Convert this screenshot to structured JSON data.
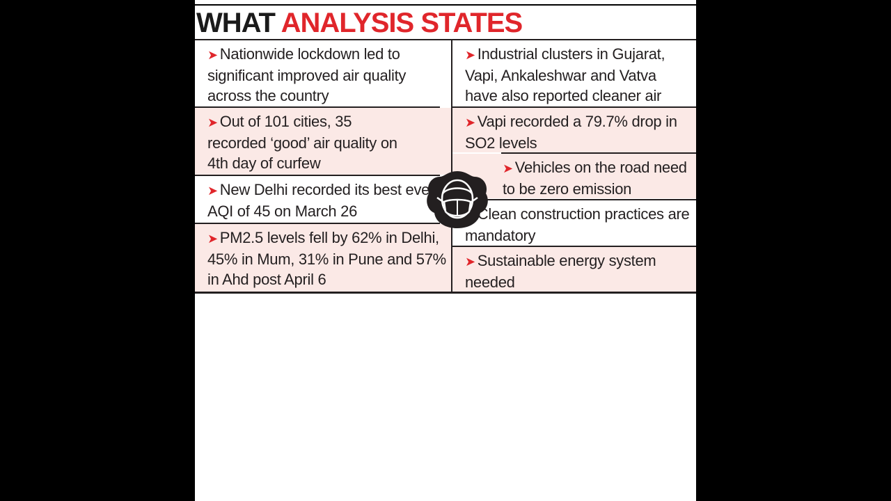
{
  "header": {
    "title_part1": "WHAT",
    "title_part2": "ANALYSIS STATES"
  },
  "left_points": [
    {
      "text": "Nationwide lockdown led to significant improved air quality across the country"
    },
    {
      "text": "Out of 101 cities, 35 recorded ‘good’ air quality on 4th day of curfew"
    },
    {
      "text": "New Delhi recorded its best ever AQI of 45 on March 26"
    },
    {
      "text": "PM2.5 levels fell by 62% in Delhi, 45% in Mum, 31% in Pune and 57% in Ahd post April 6"
    }
  ],
  "right_points": [
    {
      "text": "Industrial clusters in Gujarat, Vapi, Ankaleshwar and Vatva have also reported cleaner air"
    },
    {
      "text": "Vapi recorded a 79.7% drop in SO2 levels"
    },
    {
      "text": "Vehicles on the road need to be zero emission"
    },
    {
      "text": "Clean construction practices are mandatory"
    },
    {
      "text": "Sustainable energy system needed"
    }
  ],
  "icons": {
    "bullet": "arrow-bullet-icon",
    "center": "face-mask-icon"
  },
  "colors": {
    "accent": "#e0262b",
    "text": "#231f20",
    "tint": "#fbe9e6",
    "background": "#000000"
  }
}
